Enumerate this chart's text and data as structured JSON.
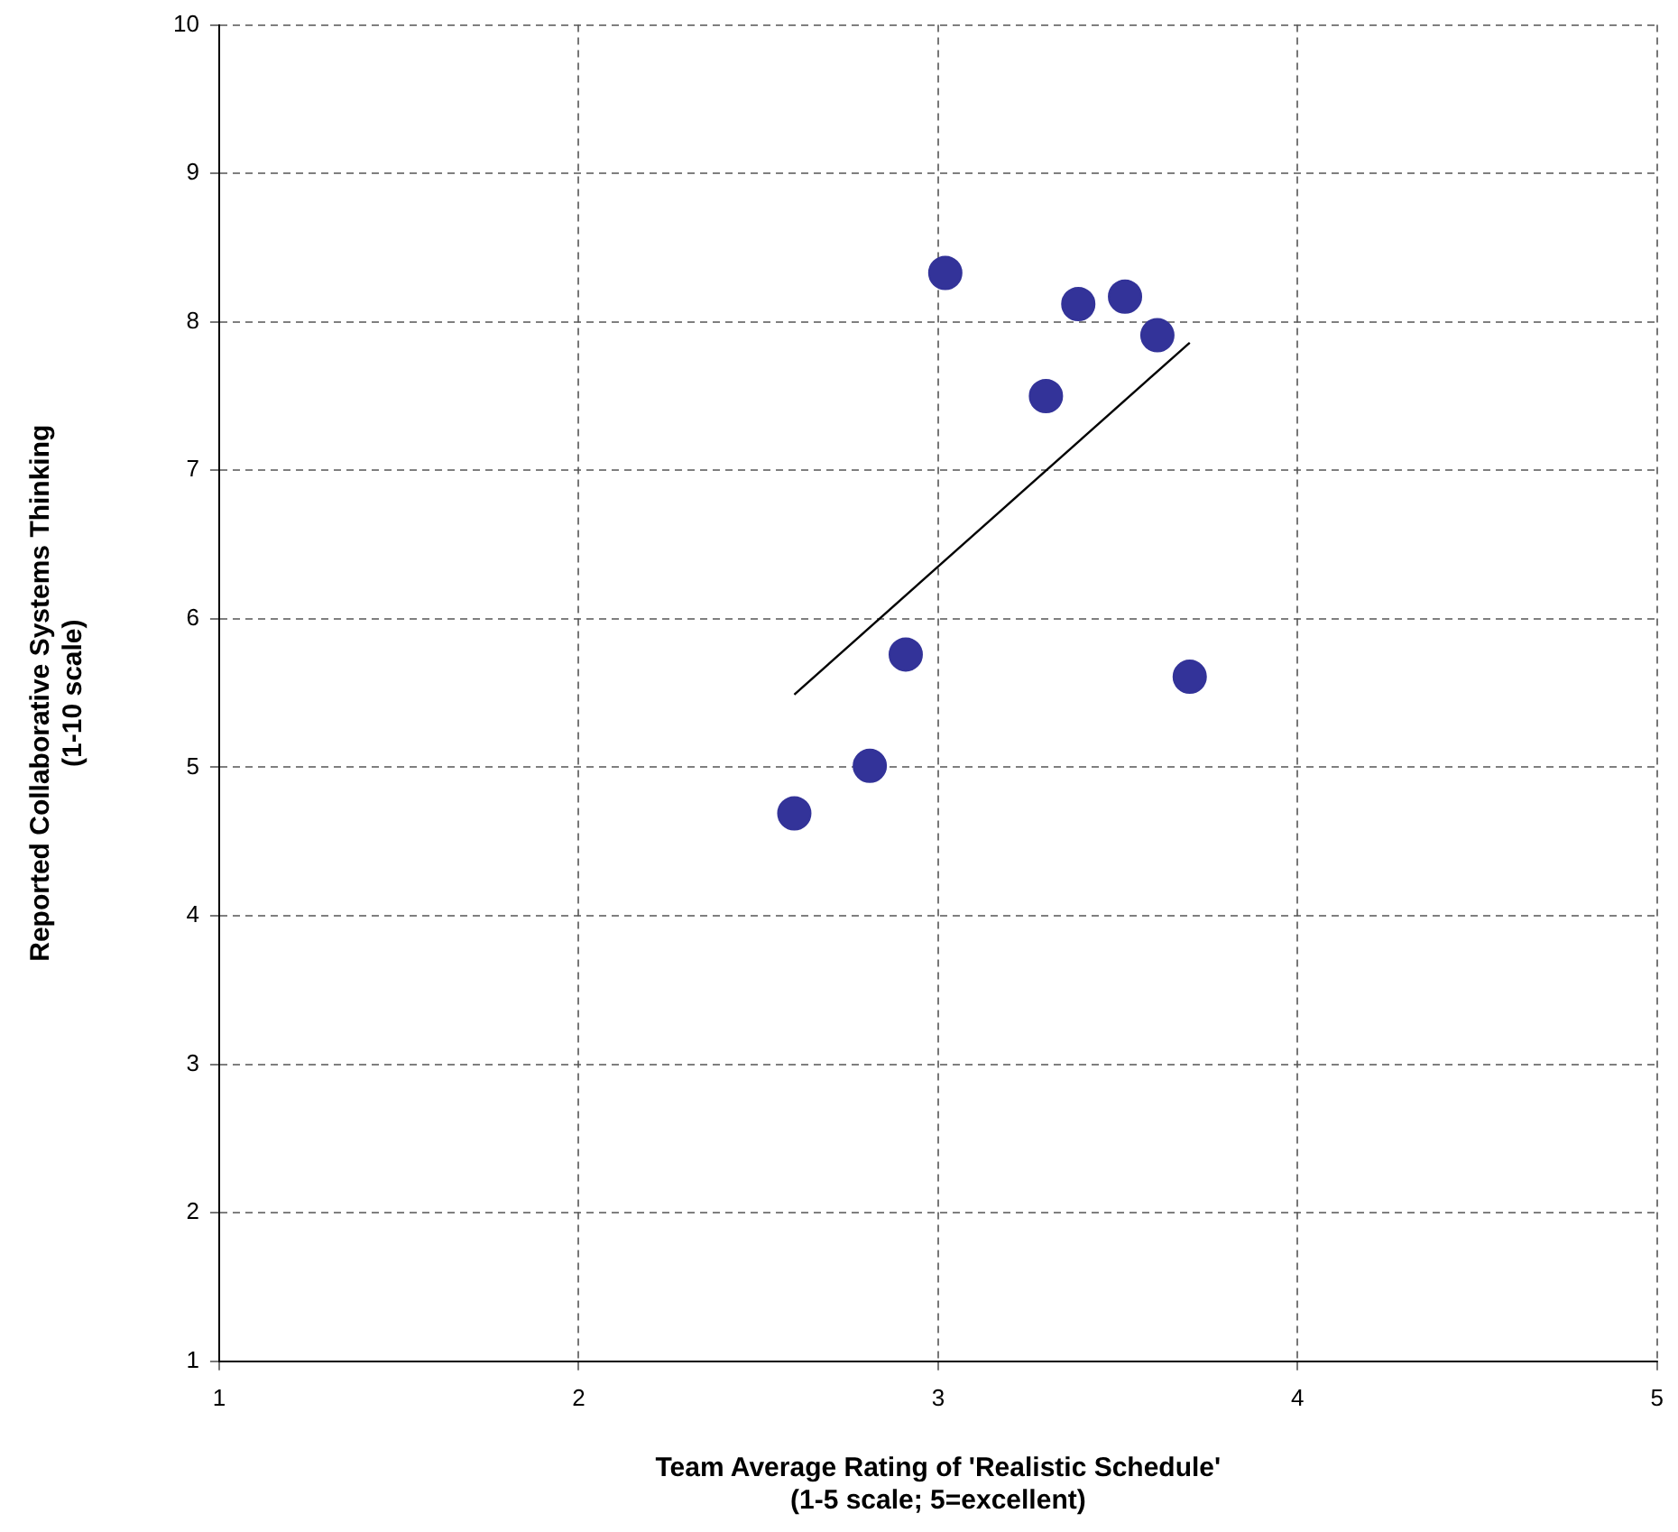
{
  "chart_data": {
    "type": "scatter",
    "xlabel": "Team Average Rating of 'Realistic Schedule'\n(1-5 scale; 5=excellent)",
    "ylabel": "Reported Collaborative Systems Thinking\n(1-10 scale)",
    "xlim": [
      1,
      5
    ],
    "xticks": [
      1,
      2,
      3,
      4,
      5
    ],
    "ylim": [
      1,
      10
    ],
    "yticks": [
      1,
      2,
      3,
      4,
      5,
      6,
      7,
      8,
      9,
      10
    ],
    "grid": true,
    "legend": false,
    "marker": "circle",
    "series": [
      {
        "color": "#333399",
        "x": [
          3.02,
          3.39,
          3.52,
          3.61,
          3.3,
          2.91,
          3.7,
          2.81,
          2.6
        ],
        "values": [
          8.33,
          8.12,
          8.17,
          7.91,
          7.5,
          5.76,
          5.61,
          5.01,
          4.69
        ]
      },
      {
        "type": "line",
        "color": "#000000",
        "line_style": "solid",
        "marker": "none",
        "x": [
          2.6,
          3.7
        ],
        "values": [
          5.49,
          7.86
        ]
      }
    ]
  }
}
